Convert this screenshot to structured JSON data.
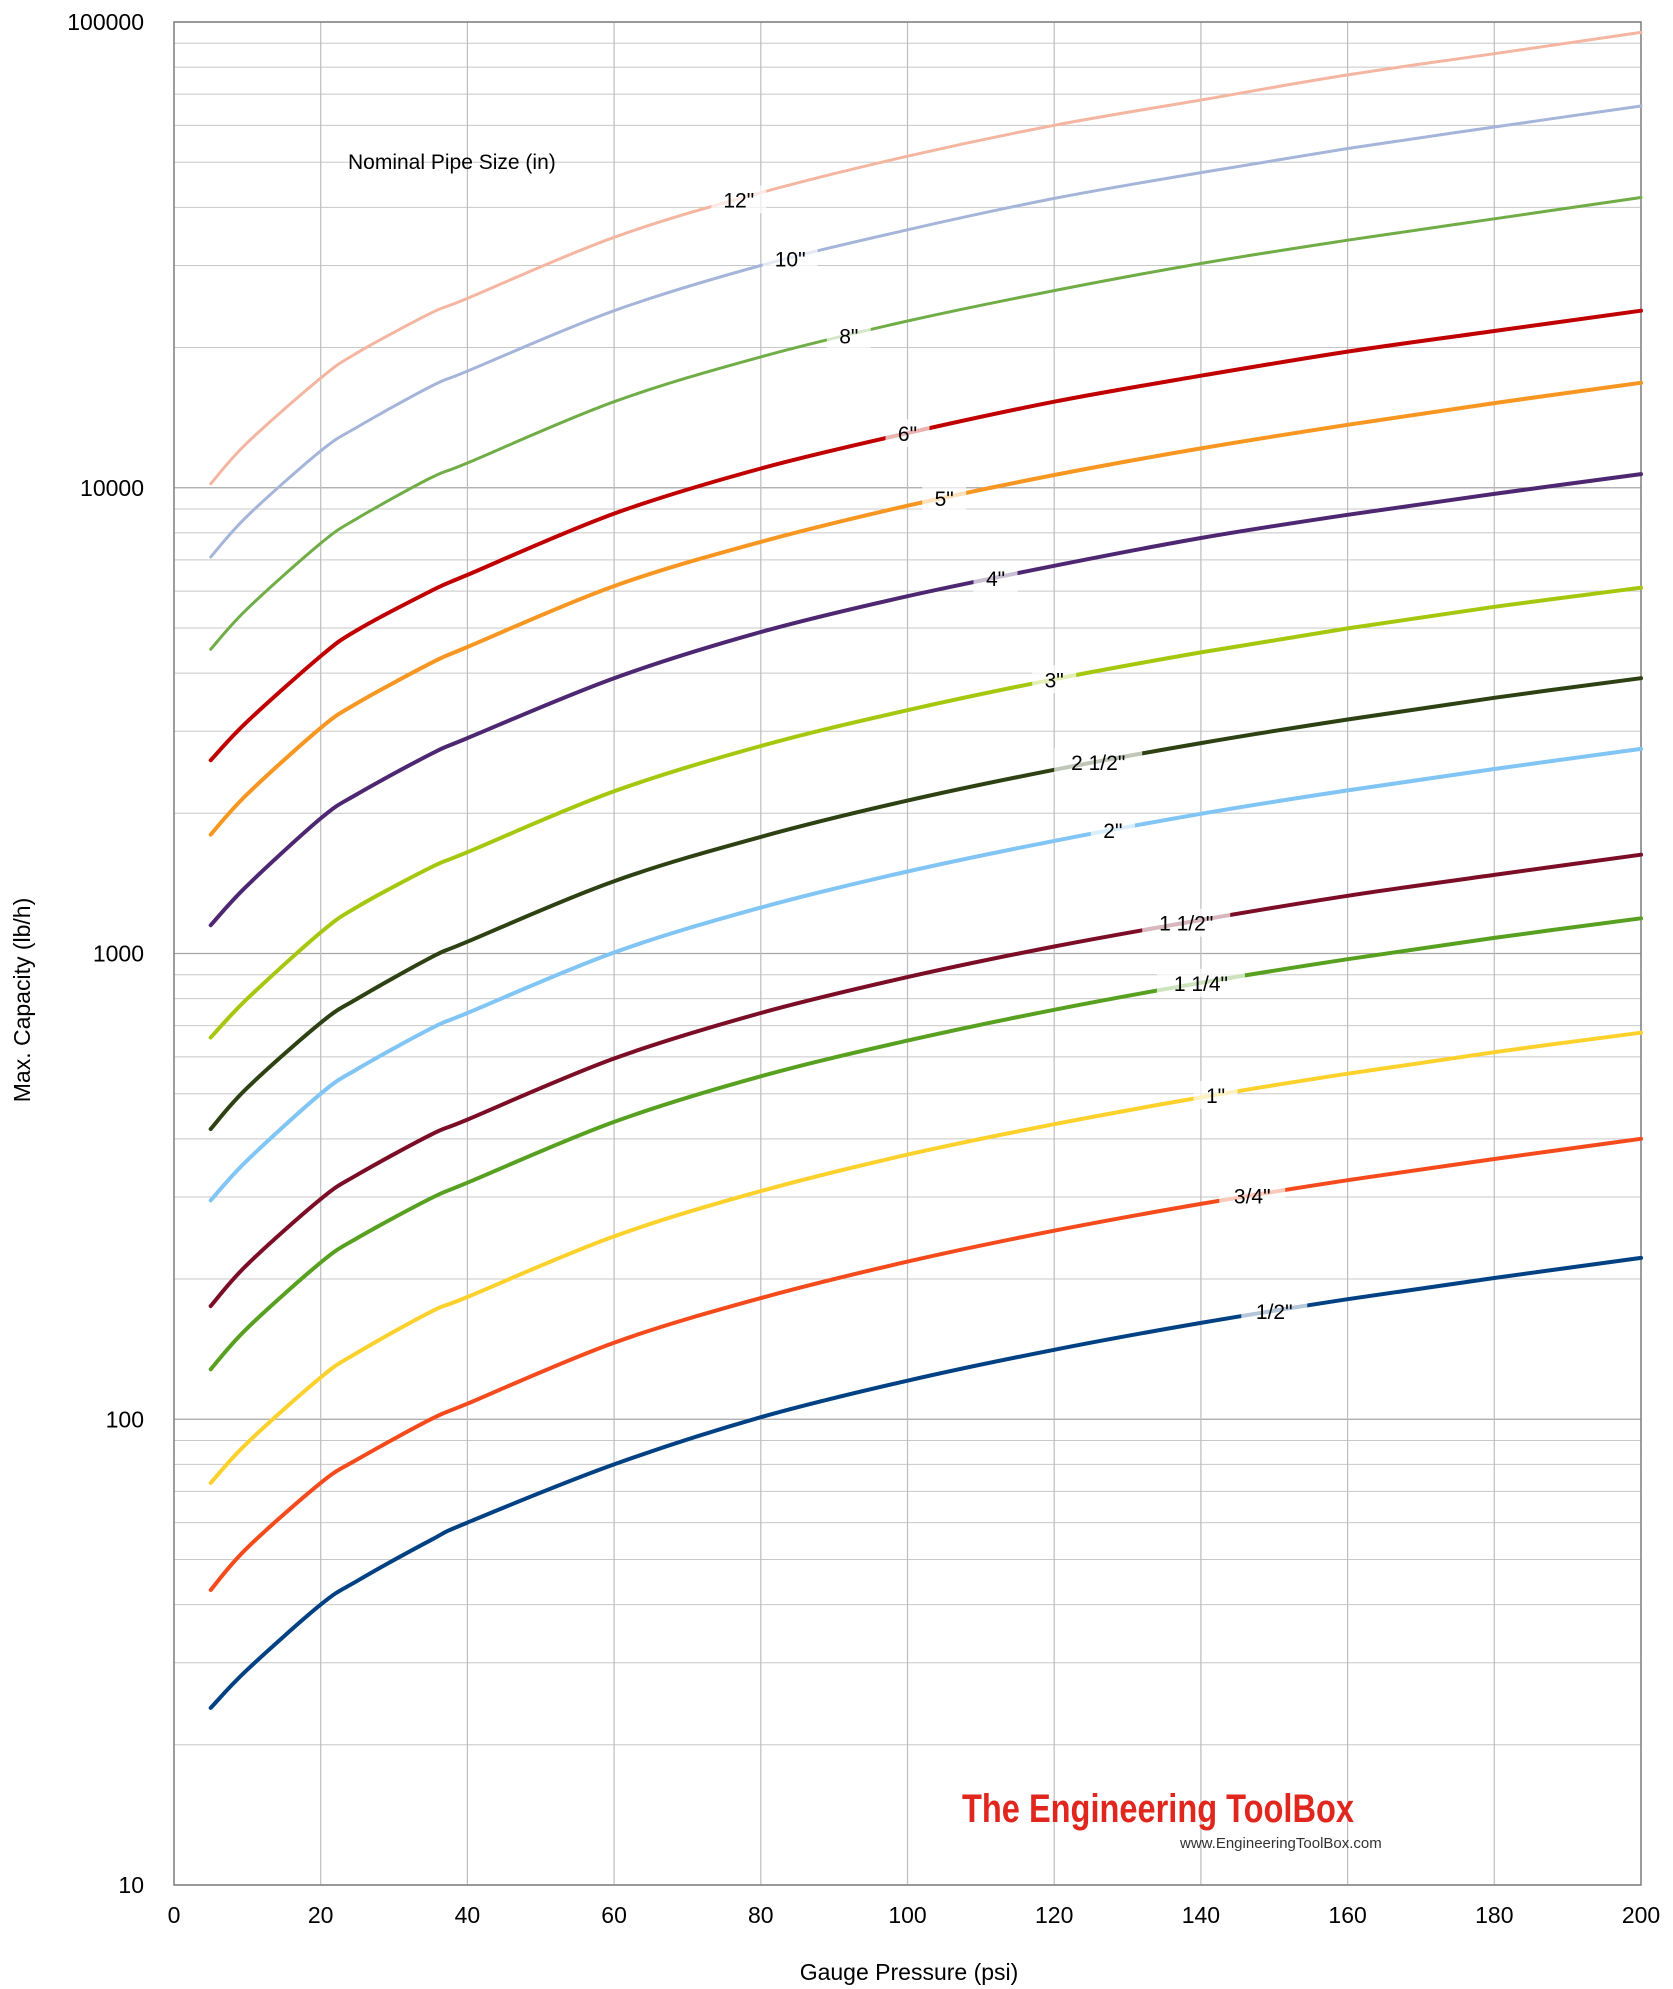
{
  "chart_data": {
    "type": "line",
    "xlabel": "Gauge Pressure (psi)",
    "ylabel": "Max. Capacity (lb/h)",
    "xlim": [
      0,
      200
    ],
    "ylim": [
      10,
      100000
    ],
    "y_scale": "log",
    "grid": true,
    "x_ticks": [
      0,
      20,
      40,
      60,
      80,
      100,
      120,
      140,
      160,
      180,
      200
    ],
    "y_ticks": [
      10,
      100,
      1000,
      10000,
      100000
    ],
    "x_tick_labels": [
      "0",
      "20",
      "40",
      "60",
      "80",
      "100",
      "120",
      "140",
      "160",
      "180",
      "200"
    ],
    "y_tick_labels": [
      "10",
      "100",
      "1000",
      "10000",
      "100000"
    ],
    "legend_title": "Nominal Pipe Size (in)",
    "x": [
      5,
      10,
      20,
      25,
      35,
      40,
      60,
      80,
      100,
      120,
      140,
      160,
      180,
      200
    ],
    "series": [
      {
        "name": "12\"",
        "color": "#f4b6a0",
        "width": 3,
        "label_x": 77,
        "values": [
          10200,
          12500,
          17200,
          19500,
          23700,
          25500,
          34500,
          43000,
          51500,
          60000,
          68000,
          77000,
          85500,
          95000
        ]
      },
      {
        "name": "10\"",
        "color": "#a5b5d9",
        "width": 3,
        "label_x": 84,
        "values": [
          7100,
          8700,
          12000,
          13500,
          16500,
          17800,
          24000,
          30000,
          35800,
          41800,
          47500,
          53500,
          59500,
          66000
        ]
      },
      {
        "name": "8\"",
        "color": "#70ad47",
        "width": 3,
        "label_x": 92,
        "values": [
          4500,
          5500,
          7600,
          8600,
          10500,
          11300,
          15300,
          19100,
          22800,
          26500,
          30300,
          34000,
          37800,
          42000
        ]
      },
      {
        "name": "6\"",
        "color": "#c00000",
        "width": 4,
        "label_x": 100,
        "values": [
          2600,
          3150,
          4350,
          4950,
          6000,
          6500,
          8800,
          11000,
          13100,
          15300,
          17400,
          19600,
          21700,
          24000
        ]
      },
      {
        "name": "5\"",
        "color": "#f79621",
        "width": 4,
        "label_x": 105,
        "values": [
          1800,
          2200,
          3050,
          3450,
          4200,
          4550,
          6150,
          7650,
          9150,
          10650,
          12150,
          13650,
          15200,
          16800
        ]
      },
      {
        "name": "4\"",
        "color": "#4d2771",
        "width": 4,
        "label_x": 112,
        "values": [
          1150,
          1400,
          1950,
          2200,
          2680,
          2900,
          3900,
          4900,
          5850,
          6800,
          7800,
          8750,
          9700,
          10700
        ]
      },
      {
        "name": "3\"",
        "color": "#a5c80e",
        "width": 4,
        "label_x": 120,
        "values": [
          660,
          800,
          1110,
          1260,
          1530,
          1650,
          2230,
          2790,
          3330,
          3880,
          4430,
          4990,
          5550,
          6100
        ]
      },
      {
        "name": "2 1/2\"",
        "color": "#2d4112",
        "width": 4,
        "label_x": 126,
        "values": [
          420,
          515,
          710,
          800,
          980,
          1060,
          1430,
          1780,
          2130,
          2480,
          2830,
          3180,
          3540,
          3900
        ]
      },
      {
        "name": "2\"",
        "color": "#81c5f5",
        "width": 4,
        "label_x": 128,
        "values": [
          295,
          360,
          500,
          565,
          690,
          745,
          1005,
          1255,
          1500,
          1745,
          1995,
          2240,
          2490,
          2750
        ]
      },
      {
        "name": "1 1/2\"",
        "color": "#7b0d26",
        "width": 4,
        "label_x": 138,
        "values": [
          175,
          215,
          297,
          335,
          408,
          440,
          595,
          745,
          890,
          1035,
          1180,
          1330,
          1475,
          1630
        ]
      },
      {
        "name": "1 1/4\"",
        "color": "#57a020",
        "width": 4,
        "label_x": 140,
        "values": [
          128,
          157,
          217,
          245,
          298,
          322,
          435,
          545,
          650,
          757,
          865,
          972,
          1080,
          1190
        ]
      },
      {
        "name": "1\"",
        "color": "#fcd12c",
        "width": 4,
        "label_x": 142,
        "values": [
          73,
          89,
          123,
          139,
          170,
          183,
          247,
          309,
          370,
          430,
          491,
          552,
          614,
          676
        ]
      },
      {
        "name": "3/4\"",
        "color": "#f44a1c",
        "width": 4,
        "label_x": 147,
        "values": [
          43,
          53,
          73,
          82,
          100,
          108,
          146,
          182,
          218,
          254,
          290,
          326,
          362,
          400
        ]
      },
      {
        "name": "1/2\"",
        "color": "#004184",
        "width": 4,
        "label_x": 150,
        "values": [
          24,
          29,
          40,
          45,
          55,
          60,
          80,
          101,
          121,
          141,
          161,
          181,
          201,
          222
        ]
      }
    ]
  },
  "watermark": {
    "brand": "The Engineering ToolBox",
    "url": "www.EngineeringToolBox.com"
  }
}
